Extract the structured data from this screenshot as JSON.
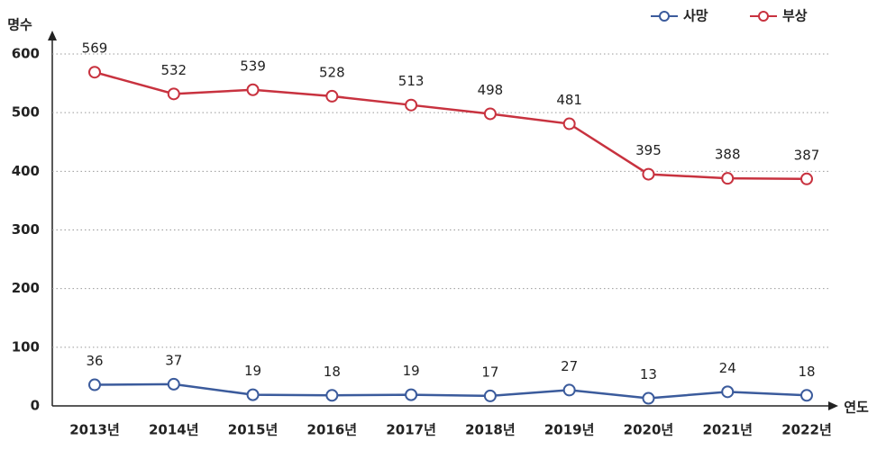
{
  "chart_data": {
    "type": "line",
    "y_axis_label": "명수",
    "x_axis_label": "연도",
    "categories": [
      "2013년",
      "2014년",
      "2015년",
      "2016년",
      "2017년",
      "2018년",
      "2019년",
      "2020년",
      "2021년",
      "2022년"
    ],
    "series": [
      {
        "name": "사망",
        "color": "#3b5b9c",
        "values": [
          36,
          37,
          19,
          18,
          19,
          17,
          27,
          13,
          24,
          18
        ]
      },
      {
        "name": "부상",
        "color": "#c8323f",
        "values": [
          569,
          532,
          539,
          528,
          513,
          498,
          481,
          395,
          388,
          387
        ]
      }
    ],
    "ylim": [
      0,
      600
    ],
    "yticks": [
      0,
      100,
      200,
      300,
      400,
      500,
      600
    ],
    "grid": true,
    "legend": "top-right"
  }
}
